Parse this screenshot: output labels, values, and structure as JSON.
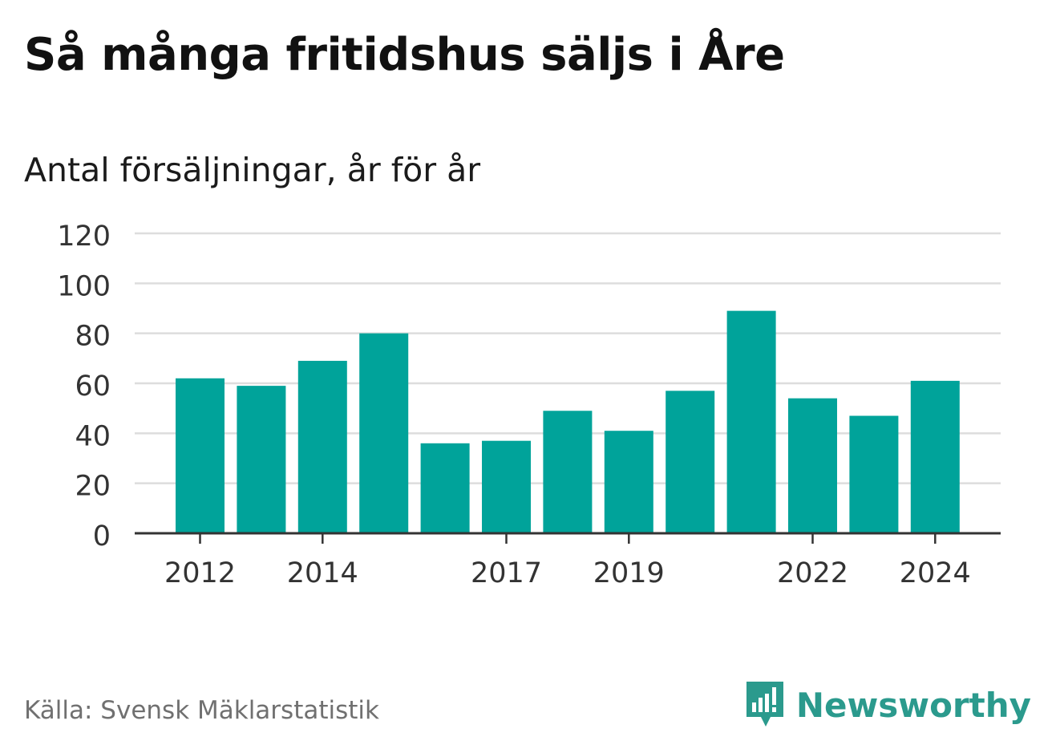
{
  "title": "Så många fritidshus säljs i Åre",
  "subtitle": "Antal försäljningar, år för år",
  "source": "Källa: Svensk Mäklarstatistik",
  "brand": {
    "name": "Newsworthy",
    "icon": "newsworthy-logo-icon",
    "color": "#2b9a8d"
  },
  "colors": {
    "bar": "#00a39a",
    "grid": "#dddddd",
    "axis": "#333333",
    "tick_text": "#333333"
  },
  "chart_data": {
    "type": "bar",
    "title": "Så många fritidshus säljs i Åre",
    "subtitle": "Antal försäljningar, år för år",
    "categories": [
      "2012",
      "2013",
      "2014",
      "2015",
      "2016",
      "2017",
      "2018",
      "2019",
      "2020",
      "2021",
      "2022",
      "2023",
      "2024"
    ],
    "values": [
      62,
      59,
      69,
      80,
      36,
      37,
      49,
      41,
      57,
      89,
      54,
      47,
      61
    ],
    "x_tick_labels": [
      "2012",
      "2014",
      "2017",
      "2019",
      "2022",
      "2024"
    ],
    "y_ticks": [
      0,
      20,
      40,
      60,
      80,
      100,
      120
    ],
    "ylim": [
      0,
      120
    ],
    "grid": true,
    "legend": "none"
  }
}
